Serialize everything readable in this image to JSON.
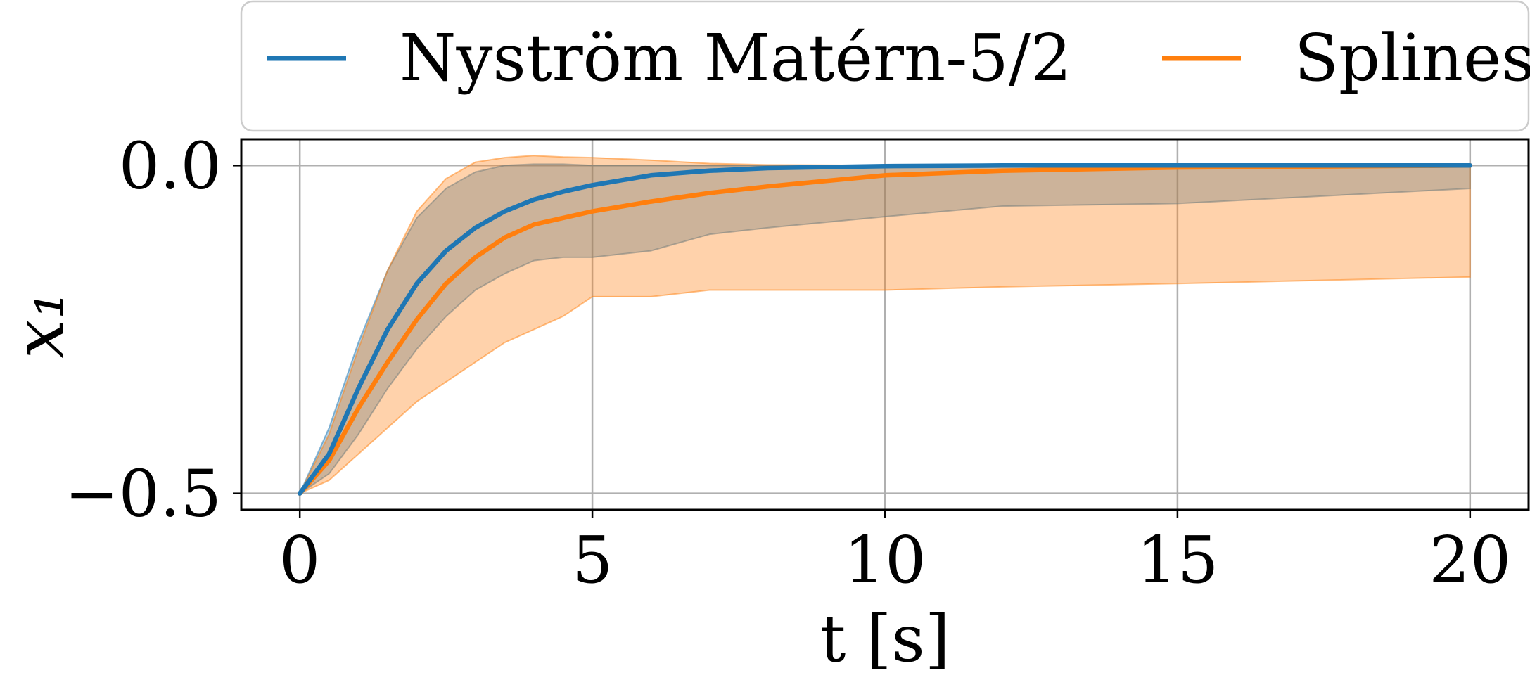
{
  "chart_data": {
    "type": "line",
    "xlabel": "t [s]",
    "ylabel": "x₁",
    "xlim": [
      -1,
      21
    ],
    "ylim": [
      -0.525,
      0.04
    ],
    "x_ticks": [
      0,
      5,
      10,
      15,
      20
    ],
    "x_tick_labels": [
      "0",
      "5",
      "10",
      "15",
      "20"
    ],
    "y_ticks": [
      0.0,
      -0.5
    ],
    "y_tick_labels": [
      "0.0",
      "−0.5"
    ],
    "grid": true,
    "legend_position": "top",
    "series": [
      {
        "name": "Nyström Matérn-5/2",
        "color": "#1f77b4",
        "x": [
          0,
          0.5,
          1,
          1.5,
          2,
          2.5,
          3,
          3.5,
          4,
          4.5,
          5,
          6,
          7,
          8,
          10,
          12,
          15,
          20
        ],
        "y": [
          -0.5,
          -0.44,
          -0.34,
          -0.25,
          -0.18,
          -0.13,
          -0.095,
          -0.07,
          -0.052,
          -0.04,
          -0.03,
          -0.015,
          -0.008,
          -0.004,
          -0.001,
          0.0,
          0.0,
          0.0
        ],
        "band_upper": [
          -0.5,
          -0.4,
          -0.27,
          -0.16,
          -0.08,
          -0.035,
          -0.01,
          0.0,
          0.002,
          0.002,
          0.0,
          0.0,
          0.0,
          0.0,
          0.0,
          0.0,
          0.0,
          0.0
        ],
        "band_lower": [
          -0.5,
          -0.47,
          -0.41,
          -0.34,
          -0.28,
          -0.23,
          -0.19,
          -0.165,
          -0.145,
          -0.14,
          -0.14,
          -0.13,
          -0.105,
          -0.095,
          -0.078,
          -0.062,
          -0.058,
          -0.035
        ]
      },
      {
        "name": "Splines",
        "color": "#ff7f0e",
        "x": [
          0,
          0.5,
          1,
          1.5,
          2,
          2.5,
          3,
          3.5,
          4,
          4.5,
          5,
          6,
          7,
          8,
          10,
          12,
          15,
          20
        ],
        "y": [
          -0.5,
          -0.45,
          -0.37,
          -0.3,
          -0.235,
          -0.18,
          -0.14,
          -0.11,
          -0.09,
          -0.08,
          -0.07,
          -0.055,
          -0.042,
          -0.032,
          -0.015,
          -0.008,
          -0.003,
          0.0
        ],
        "band_upper": [
          -0.5,
          -0.41,
          -0.28,
          -0.16,
          -0.07,
          -0.02,
          0.005,
          0.012,
          0.015,
          0.013,
          0.012,
          0.008,
          0.003,
          0.001,
          0.0,
          0.0,
          0.0,
          0.0
        ],
        "band_lower": [
          -0.5,
          -0.48,
          -0.44,
          -0.4,
          -0.36,
          -0.33,
          -0.3,
          -0.27,
          -0.25,
          -0.23,
          -0.2,
          -0.2,
          -0.19,
          -0.19,
          -0.19,
          -0.185,
          -0.18,
          -0.17
        ]
      }
    ]
  }
}
